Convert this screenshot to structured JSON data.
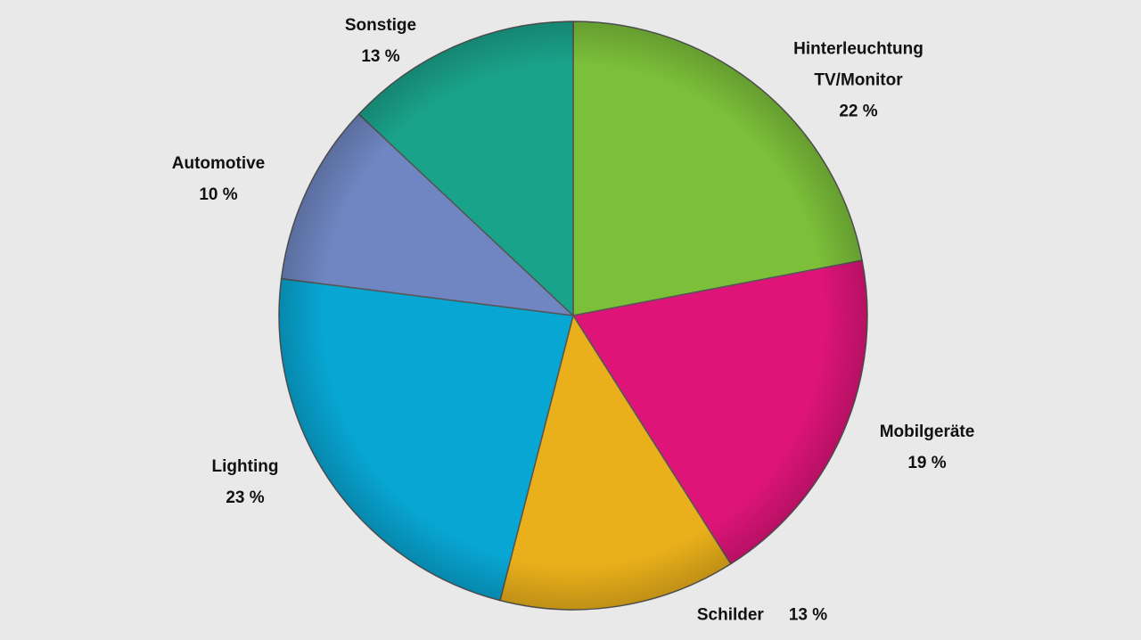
{
  "chart_data": {
    "type": "pie",
    "categories": [
      "Hinterleuchtung TV/Monitor",
      "Mobilgeräte",
      "Schilder",
      "Lighting",
      "Automotive",
      "Sonstige"
    ],
    "values": [
      22,
      19,
      13,
      23,
      10,
      13
    ],
    "value_labels": [
      "22 %",
      "19 %",
      "13 %",
      "23 %",
      "10 %",
      "13 %"
    ],
    "colors": [
      "#7cc03a",
      "#de1479",
      "#eab01b",
      "#08a6d3",
      "#6f86c2",
      "#1aa38b"
    ]
  }
}
